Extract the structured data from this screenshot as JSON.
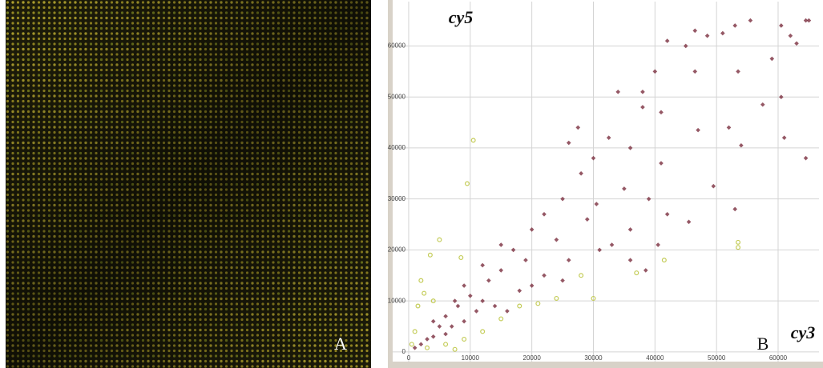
{
  "panel_a": {
    "label": "A"
  },
  "chart_data": {
    "type": "scatter",
    "panel_label": "B",
    "xlabel": "cy3",
    "ylabel": "cy5",
    "xlim": [
      -2600,
      66640
    ],
    "ylim": [
      -1900,
      68700
    ],
    "xticks": [
      0,
      10000,
      20000,
      30000,
      40000,
      50000,
      60000
    ],
    "yticks": [
      0,
      10000,
      20000,
      30000,
      40000,
      50000,
      60000
    ],
    "grid": true,
    "series": [
      {
        "color": "#7a2e3e",
        "marker": "diamond",
        "x": [
          65000,
          64500,
          62000,
          60500,
          63000,
          59000,
          60500,
          61000,
          64500,
          57500,
          55500,
          53000,
          51000,
          48500,
          46500,
          45000,
          46500,
          42000,
          40000,
          38000,
          34000,
          38000,
          41000,
          47000,
          52000,
          54000,
          53500,
          49500,
          53000,
          41000,
          36000,
          32500,
          27500,
          30000,
          26000,
          28000,
          30500,
          35000,
          39000,
          42000,
          45500,
          36000,
          33000,
          29000,
          25000,
          24000,
          22000,
          20000,
          19000,
          17000,
          15000,
          13000,
          12000,
          10000,
          8000,
          6000,
          5000,
          4000,
          3000,
          2000,
          1000,
          7000,
          9000,
          11000,
          14000,
          18000,
          22000,
          26000,
          31000,
          36000,
          40500,
          38500,
          25000,
          16000,
          9000,
          7500,
          12000,
          15000,
          20000,
          4000,
          6000
        ],
        "values": [
          65000,
          65000,
          62000,
          64000,
          60500,
          57500,
          50000,
          42000,
          38000,
          48500,
          65000,
          64000,
          62500,
          62000,
          63000,
          60000,
          55000,
          61000,
          55000,
          51000,
          51000,
          48000,
          47000,
          43500,
          44000,
          40500,
          55000,
          32500,
          28000,
          37000,
          40000,
          42000,
          44000,
          38000,
          41000,
          35000,
          29000,
          32000,
          30000,
          27000,
          25500,
          24000,
          21000,
          26000,
          30000,
          22000,
          27000,
          24000,
          18000,
          20000,
          16000,
          14000,
          10000,
          11000,
          9000,
          7000,
          5000,
          3000,
          2500,
          1500,
          800,
          5000,
          6000,
          8000,
          9000,
          12000,
          15000,
          18000,
          20000,
          18000,
          21000,
          16000,
          14000,
          8000,
          13000,
          10000,
          17000,
          21000,
          13000,
          6000,
          3500
        ]
      },
      {
        "color": "#c4cc58",
        "marker": "circle",
        "x": [
          10500,
          9500,
          53500,
          53500,
          5000,
          3500,
          8500,
          2000,
          1500,
          1000,
          500,
          3000,
          6000,
          9000,
          12000,
          15000,
          18000,
          21000,
          24000,
          30000,
          28000,
          41500,
          37000,
          7500,
          4000,
          2500
        ],
        "values": [
          41500,
          33000,
          21500,
          20500,
          22000,
          19000,
          18500,
          14000,
          9000,
          4000,
          1500,
          800,
          1500,
          2500,
          4000,
          6500,
          9000,
          9500,
          10500,
          10500,
          15000,
          18000,
          15500,
          500,
          10000,
          11500
        ]
      }
    ]
  }
}
